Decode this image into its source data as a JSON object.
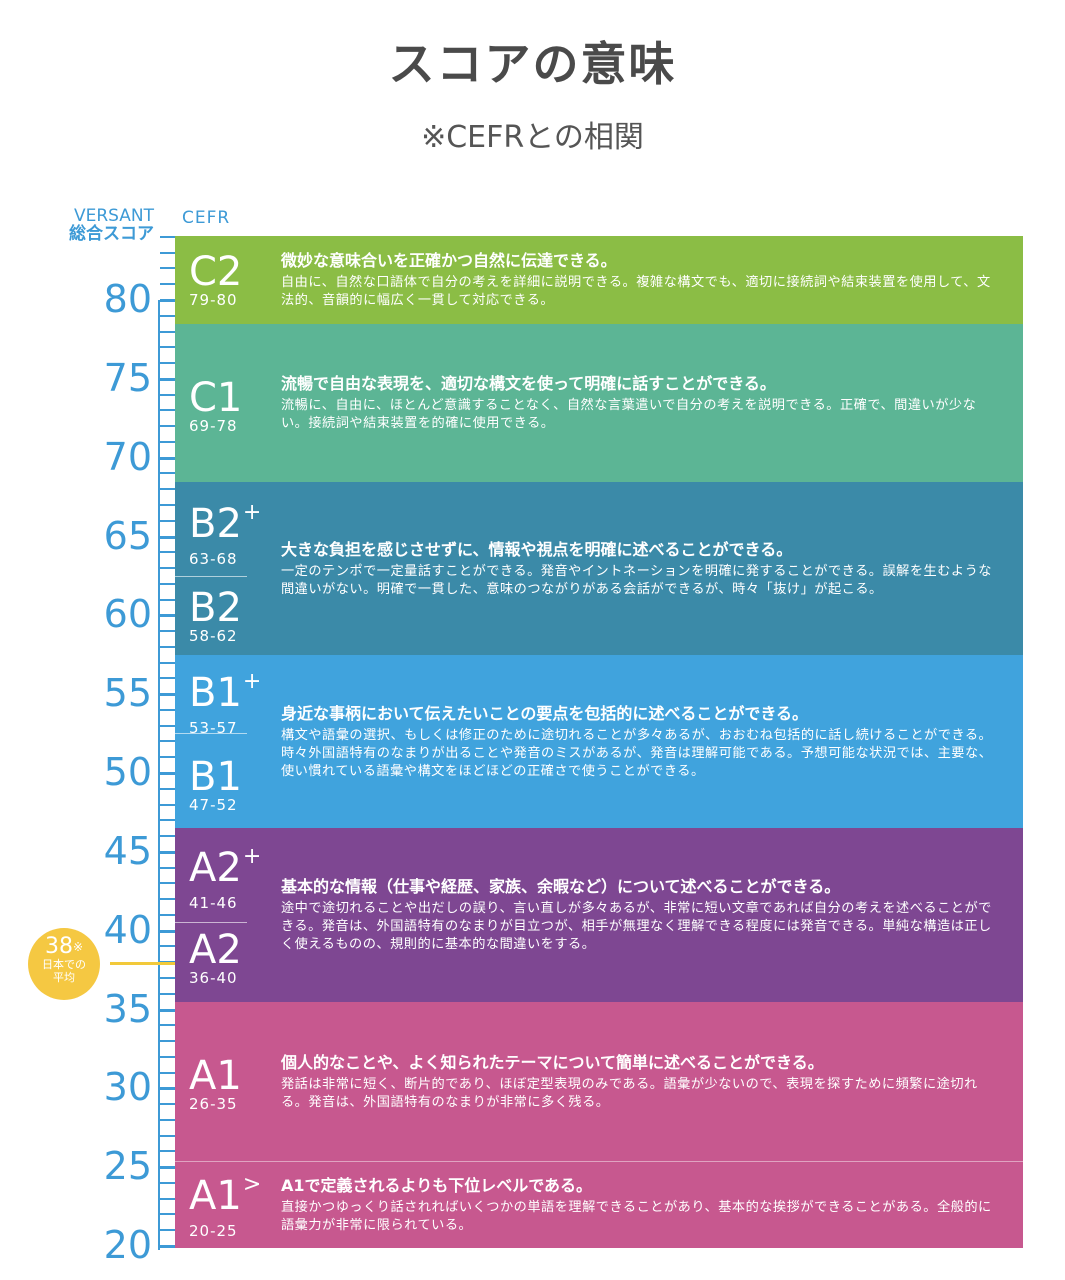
{
  "title": "スコアの意味",
  "subtitle": "※CEFRとの相関",
  "header": {
    "versant": "VERSANT",
    "versant_score": "総合スコア",
    "cefr": "CEFR"
  },
  "axis": {
    "labels": [
      "80",
      "75",
      "70",
      "65",
      "60",
      "55",
      "50",
      "45",
      "40",
      "35",
      "30",
      "25",
      "20"
    ]
  },
  "average": {
    "value": "38",
    "mark": "※",
    "caption_line1": "日本での",
    "caption_line2": "平均",
    "color": "#f5c842"
  },
  "bands": [
    {
      "color": "#8bbd45",
      "levels": [
        {
          "code": "C2",
          "sup": "",
          "range": "79-80"
        }
      ],
      "heading": "微妙な意味合いを正確かつ自然に伝達できる。",
      "text": "自由に、自然な口語体で自分の考えを詳細に説明できる。複雑な構文でも、適切に接続詞や結束装置を使用して、文法的、音韻的に幅広く一貫して対応できる。"
    },
    {
      "color": "#5cb595",
      "levels": [
        {
          "code": "C1",
          "sup": "",
          "range": "69-78"
        }
      ],
      "heading": "流暢で自由な表現を、適切な構文を使って明確に話すことができる。",
      "text": "流暢に、自由に、ほとんど意識することなく、自然な言葉遣いで自分の考えを説明できる。正確で、間違いが少ない。接続詞や結束装置を的確に使用できる。"
    },
    {
      "color": "#3b8aa8",
      "levels": [
        {
          "code": "B2",
          "sup": "+",
          "range": "63-68"
        },
        {
          "code": "B2",
          "sup": "",
          "range": "58-62"
        }
      ],
      "heading": "大きな負担を感じさせずに、情報や視点を明確に述べることができる。",
      "text": "一定のテンポで一定量話すことができる。発音やイントネーションを明確に発することができる。誤解を生むような間違いがない。明確で一貫した、意味のつながりがある会話ができるが、時々「抜け」が起こる。"
    },
    {
      "color": "#40a3dd",
      "levels": [
        {
          "code": "B1",
          "sup": "+",
          "range": "53-57"
        },
        {
          "code": "B1",
          "sup": "",
          "range": "47-52"
        }
      ],
      "heading": "身近な事柄において伝えたいことの要点を包括的に述べることができる。",
      "text": "構文や語彙の選択、もしくは修正のために途切れることが多々あるが、おおむね包括的に話し続けることができる。時々外国語特有のなまりが出ることや発音のミスがあるが、発音は理解可能である。予想可能な状況では、主要な、使い慣れている語彙や構文をほどほどの正確さで使うことができる。"
    },
    {
      "color": "#7e4792",
      "levels": [
        {
          "code": "A2",
          "sup": "+",
          "range": "41-46"
        },
        {
          "code": "A2",
          "sup": "",
          "range": "36-40"
        }
      ],
      "heading": "基本的な情報（仕事や経歴、家族、余暇など）について述べることができる。",
      "text": "途中で途切れることや出だしの誤り、言い直しが多々あるが、非常に短い文章であれば自分の考えを述べることができる。発音は、外国語特有のなまりが目立つが、相手が無理なく理解できる程度には発音できる。単純な構造は正しく使えるものの、規則的に基本的な間違いをする。"
    },
    {
      "color": "#c7588f",
      "levels": [
        {
          "code": "A1",
          "sup": "",
          "range": "26-35"
        }
      ],
      "heading": "個人的なことや、よく知られたテーマについて簡単に述べることができる。",
      "text": "発話は非常に短く、断片的であり、ほぼ定型表現のみである。語彙が少ないので、表現を探すために頻繁に途切れる。発音は、外国語特有のなまりが非常に多く残る。"
    },
    {
      "color": "#c7588f",
      "levels": [
        {
          "code": "A1",
          "sup": ">",
          "range": "20-25"
        }
      ],
      "heading": "A1で定義されるよりも下位レベルである。",
      "text": "直接かつゆっくり話されればいくつかの単語を理解できることがあり、基本的な挨拶ができることがある。全般的に語彙力が非常に限られている。"
    }
  ]
}
